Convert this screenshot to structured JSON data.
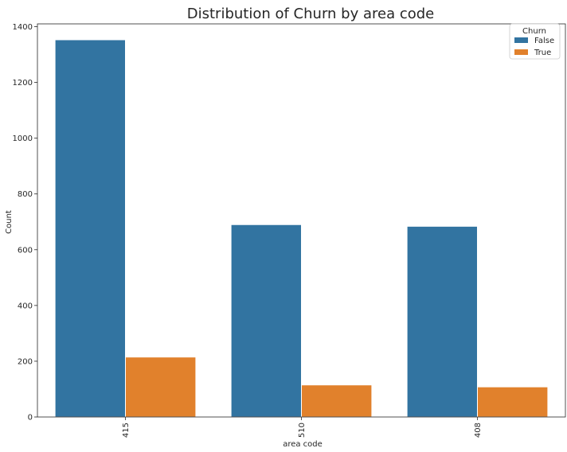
{
  "chart_data": {
    "type": "bar",
    "title": "Distribution of Churn by area code",
    "xlabel": "area code",
    "ylabel": "Count",
    "categories": [
      "415",
      "510",
      "408"
    ],
    "series": [
      {
        "name": "False",
        "color": "#3274a1",
        "values": [
          1353,
          690,
          684
        ]
      },
      {
        "name": "True",
        "color": "#e1812c",
        "values": [
          215,
          115,
          108
        ]
      }
    ],
    "ylim": [
      0,
      1410
    ],
    "yticks": [
      0,
      200,
      400,
      600,
      800,
      1000,
      1200,
      1400
    ],
    "grid": false,
    "legend": {
      "title": "Churn",
      "placement": "top-right"
    }
  }
}
